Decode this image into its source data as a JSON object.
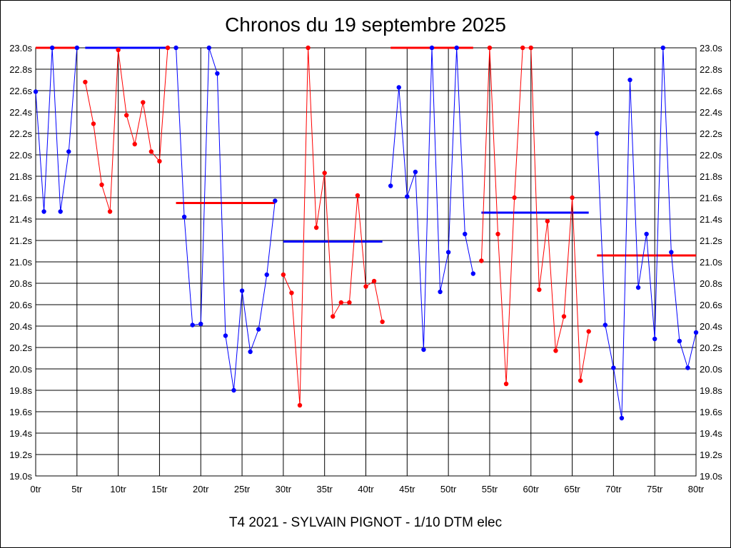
{
  "title": "Chronos du 19 septembre 2025",
  "footer": "T4 2021 - SYLVAIN PIGNOT - 1/10 DTM elec",
  "chart_data": {
    "type": "line",
    "title": "Chronos du 19 septembre 2025",
    "xlabel": "",
    "ylabel": "",
    "xlim": [
      0,
      80
    ],
    "ylim": [
      19.0,
      23.0
    ],
    "x_ticks": [
      0,
      5,
      10,
      15,
      20,
      25,
      30,
      35,
      40,
      45,
      50,
      55,
      60,
      65,
      70,
      75,
      80
    ],
    "x_tick_labels": [
      "0tr",
      "5tr",
      "10tr",
      "15tr",
      "20tr",
      "25tr",
      "30tr",
      "35tr",
      "40tr",
      "45tr",
      "50tr",
      "55tr",
      "60tr",
      "65tr",
      "70tr",
      "75tr",
      "80tr"
    ],
    "y_ticks": [
      19.0,
      19.2,
      19.4,
      19.6,
      19.8,
      20.0,
      20.2,
      20.4,
      20.6,
      20.8,
      21.0,
      21.2,
      21.4,
      21.6,
      21.8,
      22.0,
      22.2,
      22.4,
      22.6,
      22.8,
      23.0
    ],
    "y_tick_labels": [
      "19.0s",
      "19.2s",
      "19.4s",
      "19.6s",
      "19.8s",
      "20.0s",
      "20.2s",
      "20.4s",
      "20.6s",
      "20.8s",
      "21.0s",
      "21.2s",
      "21.4s",
      "21.6s",
      "21.8s",
      "22.0s",
      "22.2s",
      "22.4s",
      "22.6s",
      "22.8s",
      "23.0s"
    ],
    "grid": true,
    "series": [
      {
        "color": "#0000ff",
        "points": [
          [
            0,
            22.59
          ],
          [
            1,
            21.47
          ],
          [
            2,
            23.0
          ],
          [
            3,
            21.47
          ],
          [
            4,
            22.03
          ],
          [
            5,
            23.0
          ]
        ]
      },
      {
        "color": "#ff0000",
        "points": [
          [
            6,
            22.68
          ],
          [
            7,
            22.29
          ],
          [
            8,
            21.72
          ],
          [
            9,
            21.47
          ],
          [
            10,
            22.98
          ],
          [
            11,
            22.37
          ],
          [
            12,
            22.1
          ],
          [
            13,
            22.49
          ],
          [
            14,
            22.03
          ],
          [
            15,
            21.94
          ],
          [
            16,
            23.0
          ]
        ]
      },
      {
        "color": "#0000ff",
        "points": [
          [
            17,
            23.0
          ],
          [
            18,
            21.42
          ],
          [
            19,
            20.41
          ],
          [
            20,
            20.42
          ],
          [
            21,
            23.0
          ],
          [
            22,
            22.76
          ],
          [
            23,
            20.31
          ],
          [
            24,
            19.8
          ],
          [
            25,
            20.73
          ],
          [
            26,
            20.16
          ],
          [
            27,
            20.37
          ],
          [
            28,
            20.88
          ],
          [
            29,
            21.57
          ]
        ]
      },
      {
        "color": "#ff0000",
        "points": [
          [
            30,
            20.88
          ],
          [
            31,
            20.71
          ],
          [
            32,
            19.66
          ],
          [
            33,
            23.0
          ],
          [
            34,
            21.32
          ],
          [
            35,
            21.83
          ],
          [
            36,
            20.49
          ],
          [
            37,
            20.62
          ],
          [
            38,
            20.62
          ],
          [
            39,
            21.62
          ],
          [
            40,
            20.77
          ],
          [
            41,
            20.82
          ],
          [
            42,
            20.44
          ]
        ]
      },
      {
        "color": "#0000ff",
        "points": [
          [
            43,
            21.71
          ],
          [
            44,
            22.63
          ],
          [
            45,
            21.61
          ],
          [
            46,
            21.84
          ],
          [
            47,
            20.18
          ],
          [
            48,
            23.0
          ],
          [
            49,
            20.72
          ],
          [
            50,
            21.09
          ],
          [
            51,
            23.0
          ],
          [
            52,
            21.26
          ],
          [
            53,
            20.89
          ]
        ]
      },
      {
        "color": "#ff0000",
        "points": [
          [
            54,
            21.01
          ],
          [
            55,
            23.0
          ],
          [
            56,
            21.26
          ],
          [
            57,
            19.86
          ],
          [
            58,
            21.6
          ],
          [
            59,
            23.0
          ],
          [
            60,
            23.0
          ],
          [
            61,
            20.74
          ],
          [
            62,
            21.38
          ],
          [
            63,
            20.17
          ],
          [
            64,
            20.49
          ],
          [
            65,
            21.6
          ],
          [
            66,
            19.89
          ],
          [
            67,
            20.35
          ]
        ]
      },
      {
        "color": "#0000ff",
        "points": [
          [
            68,
            22.2
          ],
          [
            69,
            20.41
          ],
          [
            70,
            20.01
          ],
          [
            71,
            19.54
          ],
          [
            72,
            22.7
          ],
          [
            73,
            20.76
          ],
          [
            74,
            21.26
          ],
          [
            75,
            20.28
          ],
          [
            76,
            23.0
          ],
          [
            77,
            21.09
          ],
          [
            78,
            20.26
          ],
          [
            79,
            20.01
          ],
          [
            80,
            20.34
          ]
        ]
      }
    ],
    "averages": [
      {
        "color": "#ff0000",
        "x": [
          0,
          5
        ],
        "y": 23.0
      },
      {
        "color": "#0000ff",
        "x": [
          6,
          16
        ],
        "y": 23.0
      },
      {
        "color": "#ff0000",
        "x": [
          17,
          29
        ],
        "y": 21.55
      },
      {
        "color": "#0000ff",
        "x": [
          30,
          42
        ],
        "y": 21.19
      },
      {
        "color": "#ff0000",
        "x": [
          43,
          53
        ],
        "y": 23.0
      },
      {
        "color": "#0000ff",
        "x": [
          54,
          67
        ],
        "y": 21.46
      },
      {
        "color": "#ff0000",
        "x": [
          68,
          80
        ],
        "y": 21.06
      }
    ]
  }
}
